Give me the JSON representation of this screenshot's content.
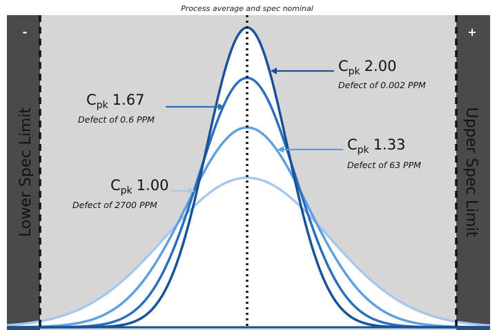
{
  "title": "Process average and spec nominal",
  "lower_limit": {
    "sign": "-",
    "label": "Lower Spec Limit"
  },
  "upper_limit": {
    "sign": "+",
    "label": "Upper Spec Limit"
  },
  "curves": [
    {
      "cpk_prefix": "C",
      "cpk_sub": "pk",
      "cpk_value": "1.00",
      "defect": "Defect of 2700 PPM",
      "color": "#a6c8ec"
    },
    {
      "cpk_prefix": "C",
      "cpk_sub": "pk",
      "cpk_value": "1.33",
      "defect": "Defect of 63 PPM",
      "color": "#5d9fe0"
    },
    {
      "cpk_prefix": "C",
      "cpk_sub": "pk",
      "cpk_value": "1.67",
      "defect": "Defect of 0.6 PPM",
      "color": "#2a6fbe"
    },
    {
      "cpk_prefix": "C",
      "cpk_sub": "pk",
      "cpk_value": "2.00",
      "defect": "Defect of 0.002 PPM",
      "color": "#17519a"
    }
  ],
  "colors": {
    "background": "#d6d6d6",
    "outside_spec": "#4a4a4a",
    "fill": "#ffffff"
  }
}
